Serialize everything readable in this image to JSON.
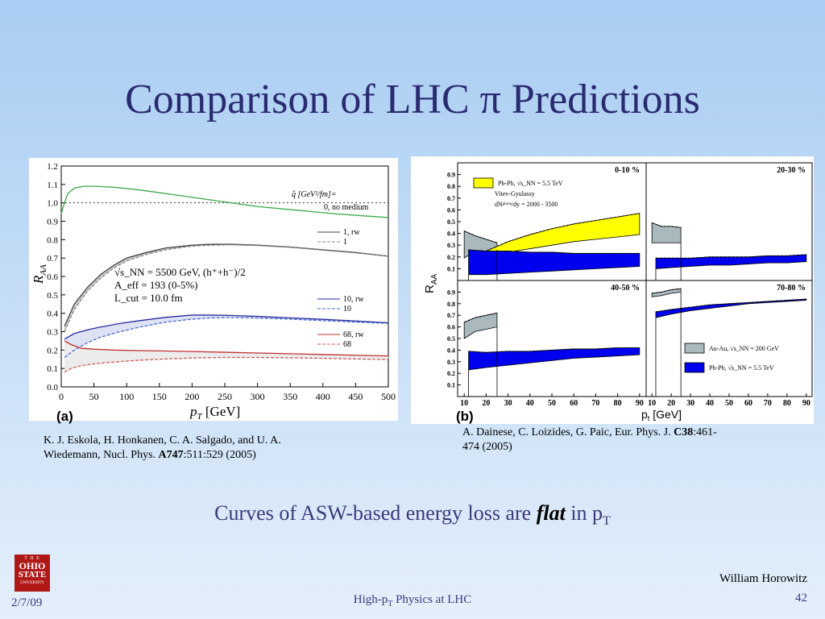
{
  "slide": {
    "title": "Comparison of LHC π Predictions",
    "caption_pre": "Curves of ASW-based energy loss are ",
    "caption_flat": "flat",
    "caption_post": " in p",
    "caption_sub": "T"
  },
  "figure_a": {
    "label": "(a)",
    "ref_line1": "K. J. Eskola, H. Honkanen, C. A. Salgado, and U. A.",
    "ref_line2_pre": "Wiedemann, Nucl. Phys. ",
    "ref_vol": "A747",
    "ref_line2_post": ":511:529 (2005)"
  },
  "figure_b": {
    "label": "(b)",
    "ref_pre": "A. Dainese, C. Loizides, G. Paic, Eur. Phys. J. ",
    "ref_vol": "C38",
    "ref_post": ":461-",
    "ref_line2": "474 (2005)"
  },
  "footer": {
    "logo_the": "T H E",
    "logo_ohio": "OHIO",
    "logo_state": "STATE",
    "logo_univ": "UNIVERSITY",
    "date": "2/7/09",
    "center_pre": "High-p",
    "center_sub": "T",
    "center_post": " Physics at LHC",
    "author": "William Horowitz",
    "page": "42"
  },
  "chart_data": [
    {
      "type": "line",
      "xlabel": "p",
      "xlabel_sub": "T",
      "xlabel_unit": " [GeV]",
      "ylabel": "R",
      "ylabel_sub": "AA",
      "xlim": [
        0,
        500
      ],
      "ylim": [
        0.0,
        1.2
      ],
      "x_ticks": [
        0,
        50,
        100,
        150,
        200,
        250,
        300,
        350,
        400,
        450,
        500
      ],
      "y_ticks": [
        "0.0",
        "0.1",
        "0.2",
        "0.3",
        "0.4",
        "0.5",
        "0.6",
        "0.7",
        "0.8",
        "0.9",
        "1.0",
        "1.1",
        "1.2"
      ],
      "legend_header": "q̂ [GeV²/fm]=",
      "legend": [
        "0, no medium",
        "1, rw",
        "1",
        "10, rw",
        "10",
        "68, rw",
        "68"
      ],
      "annotation_lines": [
        "√s_NN = 5500 GeV, (h⁺+h⁻)/2",
        "A_eff = 193 (0-5%)",
        "L_cut = 10.0 fm"
      ],
      "series": [
        {
          "name": "0, no medium",
          "color": "#3aa84a",
          "x": [
            0,
            5,
            10,
            20,
            35,
            50,
            80,
            120,
            180,
            240,
            300,
            360,
            420,
            480,
            500
          ],
          "y": [
            0.94,
            1.0,
            1.05,
            1.08,
            1.09,
            1.09,
            1.085,
            1.07,
            1.04,
            1.01,
            0.98,
            0.96,
            0.94,
            0.925,
            0.92
          ]
        },
        {
          "name": "1, rw",
          "color": "#444444",
          "x": [
            5,
            20,
            40,
            60,
            80,
            100,
            130,
            160,
            200,
            230,
            260,
            300,
            350,
            400,
            450,
            500
          ],
          "y": [
            0.33,
            0.45,
            0.54,
            0.61,
            0.66,
            0.7,
            0.73,
            0.755,
            0.77,
            0.775,
            0.775,
            0.77,
            0.76,
            0.745,
            0.73,
            0.71
          ]
        },
        {
          "name": "1",
          "color": "#888888",
          "x": [
            5,
            20,
            40,
            60,
            80,
            100,
            130,
            160,
            200,
            230,
            260,
            300,
            350,
            400,
            450,
            500
          ],
          "y": [
            0.3,
            0.42,
            0.52,
            0.59,
            0.645,
            0.685,
            0.72,
            0.745,
            0.765,
            0.77,
            0.772,
            0.768,
            0.758,
            0.743,
            0.728,
            0.71
          ]
        },
        {
          "name": "10, rw",
          "color": "#2a2aa0",
          "x": [
            5,
            20,
            40,
            60,
            90,
            120,
            160,
            200,
            230,
            260,
            300,
            350,
            400,
            450,
            500
          ],
          "y": [
            0.26,
            0.29,
            0.31,
            0.325,
            0.345,
            0.36,
            0.378,
            0.39,
            0.39,
            0.388,
            0.383,
            0.375,
            0.367,
            0.358,
            0.348
          ]
        },
        {
          "name": "10",
          "color": "#4a6ad0",
          "x": [
            5,
            20,
            40,
            60,
            90,
            120,
            160,
            200,
            230,
            260,
            300,
            350,
            400,
            450,
            500
          ],
          "y": [
            0.16,
            0.2,
            0.24,
            0.27,
            0.3,
            0.325,
            0.352,
            0.368,
            0.375,
            0.377,
            0.374,
            0.368,
            0.36,
            0.352,
            0.345
          ]
        },
        {
          "name": "68, rw",
          "color": "#c03030",
          "x": [
            5,
            15,
            30,
            50,
            80,
            120,
            160,
            200,
            250,
            300,
            350,
            400,
            450,
            500
          ],
          "y": [
            0.25,
            0.23,
            0.21,
            0.205,
            0.2,
            0.197,
            0.195,
            0.192,
            0.188,
            0.184,
            0.18,
            0.176,
            0.172,
            0.168
          ]
        },
        {
          "name": "68",
          "color": "#cc5a5a",
          "x": [
            5,
            15,
            30,
            50,
            80,
            120,
            160,
            200,
            250,
            300,
            350,
            400,
            450,
            500
          ],
          "y": [
            0.08,
            0.1,
            0.115,
            0.125,
            0.135,
            0.145,
            0.152,
            0.157,
            0.16,
            0.16,
            0.158,
            0.155,
            0.152,
            0.148
          ]
        }
      ]
    },
    {
      "type": "area",
      "xlabel": "p",
      "xlabel_sub": "t",
      "xlabel_unit": " [GeV]",
      "ylabel": "R",
      "ylabel_sub": "AA",
      "xlim": [
        7,
        93
      ],
      "ylim": [
        0,
        1.0
      ],
      "x_ticks": [
        10,
        20,
        30,
        40,
        50,
        60,
        70,
        80,
        90
      ],
      "y_ticks": [
        "0.1",
        "0.2",
        "0.3",
        "0.4",
        "0.5",
        "0.6",
        "0.7",
        "0.8",
        "0.9"
      ],
      "legend": [
        {
          "text": "Pb-Pb,  √s_NN = 5.5 TeV",
          "color": "#ffff00"
        },
        {
          "text": "Vitev-Gyulassy",
          "color": ""
        },
        {
          "text": "dNᵍˡᵘᵒⁿ/dy = 2000 - 3500",
          "color": ""
        },
        {
          "text": "Au-Au,  √s_NN = 200 GeV",
          "color": "#a9b9bd"
        },
        {
          "text": "Pb-Pb,  √s_NN = 5.5 TeV",
          "color": "#0000ee"
        }
      ],
      "panels": [
        {
          "name": "0-10 %",
          "rhic": {
            "x": [
              10,
              15,
              20,
              25
            ],
            "lo": [
              0.19,
              0.25,
              0.25,
              0.26
            ],
            "hi": [
              0.42,
              0.38,
              0.35,
              0.32
            ]
          },
          "vitev": {
            "x": [
              20,
              30,
              40,
              50,
              60,
              70,
              80,
              90
            ],
            "lo": [
              0.2,
              0.24,
              0.27,
              0.3,
              0.33,
              0.35,
              0.37,
              0.39
            ],
            "hi": [
              0.25,
              0.33,
              0.39,
              0.44,
              0.48,
              0.51,
              0.54,
              0.57
            ]
          },
          "lhc": {
            "x": [
              12,
              20,
              30,
              40,
              50,
              60,
              70,
              80,
              90
            ],
            "lo": [
              0.05,
              0.05,
              0.06,
              0.07,
              0.08,
              0.09,
              0.1,
              0.11,
              0.12
            ],
            "hi": [
              0.26,
              0.25,
              0.25,
              0.24,
              0.24,
              0.23,
              0.23,
              0.23,
              0.23
            ]
          }
        },
        {
          "name": "20-30 %",
          "rhic": {
            "x": [
              10,
              15,
              20,
              25
            ],
            "lo": [
              0.32,
              0.32,
              0.32,
              0.32
            ],
            "hi": [
              0.49,
              0.46,
              0.46,
              0.45
            ]
          },
          "lhc": {
            "x": [
              12,
              20,
              30,
              40,
              50,
              60,
              70,
              80,
              90
            ],
            "lo": [
              0.1,
              0.11,
              0.12,
              0.13,
              0.13,
              0.14,
              0.15,
              0.15,
              0.16
            ],
            "hi": [
              0.19,
              0.19,
              0.19,
              0.2,
              0.2,
              0.2,
              0.21,
              0.21,
              0.22
            ]
          }
        },
        {
          "name": "40-50 %",
          "rhic": {
            "x": [
              10,
              15,
              20,
              25
            ],
            "lo": [
              0.5,
              0.56,
              0.58,
              0.6
            ],
            "hi": [
              0.64,
              0.68,
              0.7,
              0.72
            ]
          },
          "lhc": {
            "x": [
              12,
              20,
              30,
              40,
              50,
              60,
              70,
              80,
              90
            ],
            "lo": [
              0.23,
              0.25,
              0.27,
              0.29,
              0.31,
              0.33,
              0.34,
              0.35,
              0.36
            ],
            "hi": [
              0.39,
              0.38,
              0.39,
              0.39,
              0.4,
              0.41,
              0.41,
              0.42,
              0.42
            ]
          }
        },
        {
          "name": "70-80 %",
          "rhic": {
            "x": [
              10,
              15,
              20,
              25
            ],
            "lo": [
              0.86,
              0.87,
              0.89,
              0.9
            ],
            "hi": [
              0.89,
              0.9,
              0.92,
              0.93
            ]
          },
          "lhc": {
            "x": [
              12,
              20,
              30,
              40,
              50,
              60,
              70,
              80,
              90
            ],
            "lo": [
              0.68,
              0.71,
              0.74,
              0.76,
              0.78,
              0.8,
              0.81,
              0.82,
              0.83
            ],
            "hi": [
              0.73,
              0.75,
              0.77,
              0.79,
              0.8,
              0.81,
              0.82,
              0.83,
              0.84
            ]
          }
        }
      ]
    }
  ]
}
